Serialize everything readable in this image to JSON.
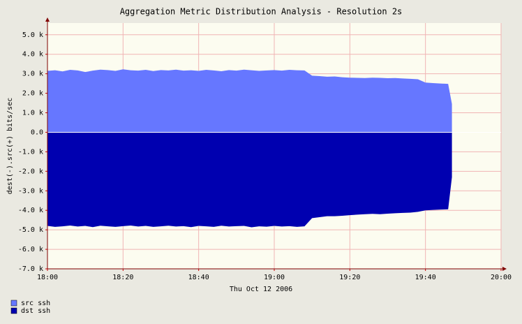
{
  "chart_data": {
    "type": "area",
    "title": "Aggregation Metric Distribution Analysis - Resolution 2s",
    "y_label": "dest(-).src(+) bits/sec",
    "x_label": "Thu Oct 12 2006",
    "x": [
      "18:00",
      "18:02",
      "18:04",
      "18:06",
      "18:08",
      "18:10",
      "18:12",
      "18:14",
      "18:16",
      "18:18",
      "18:20",
      "18:22",
      "18:24",
      "18:26",
      "18:28",
      "18:30",
      "18:32",
      "18:34",
      "18:36",
      "18:38",
      "18:40",
      "18:42",
      "18:44",
      "18:46",
      "18:48",
      "18:50",
      "18:52",
      "18:54",
      "18:56",
      "18:58",
      "19:00",
      "19:02",
      "19:04",
      "19:06",
      "19:08",
      "19:10",
      "19:12",
      "19:14",
      "19:16",
      "19:18",
      "19:20",
      "19:22",
      "19:24",
      "19:26",
      "19:28",
      "19:30",
      "19:32",
      "19:34",
      "19:36",
      "19:38",
      "19:40",
      "19:42",
      "19:44",
      "19:46",
      "19:47"
    ],
    "series": [
      {
        "name": "src ssh",
        "color": "#6677ff",
        "values": [
          3150,
          3180,
          3120,
          3200,
          3170,
          3090,
          3160,
          3210,
          3190,
          3150,
          3230,
          3180,
          3160,
          3200,
          3140,
          3190,
          3170,
          3210,
          3160,
          3180,
          3150,
          3200,
          3170,
          3130,
          3190,
          3160,
          3210,
          3180,
          3150,
          3170,
          3190,
          3160,
          3200,
          3180,
          3170,
          2900,
          2880,
          2850,
          2860,
          2820,
          2800,
          2790,
          2780,
          2800,
          2790,
          2770,
          2780,
          2760,
          2740,
          2720,
          2550,
          2520,
          2500,
          2480,
          1450
        ]
      },
      {
        "name": "dst ssh",
        "color": "#0000b0",
        "values": [
          -4800,
          -4850,
          -4820,
          -4780,
          -4830,
          -4800,
          -4860,
          -4790,
          -4820,
          -4850,
          -4810,
          -4780,
          -4830,
          -4800,
          -4850,
          -4820,
          -4790,
          -4830,
          -4810,
          -4860,
          -4800,
          -4820,
          -4850,
          -4790,
          -4830,
          -4810,
          -4800,
          -4870,
          -4820,
          -4840,
          -4800,
          -4830,
          -4810,
          -4850,
          -4820,
          -4400,
          -4350,
          -4300,
          -4300,
          -4280,
          -4250,
          -4220,
          -4200,
          -4180,
          -4200,
          -4170,
          -4150,
          -4130,
          -4120,
          -4080,
          -4000,
          -3980,
          -3960,
          -3950,
          -2300
        ]
      }
    ],
    "xlim": [
      "18:00",
      "20:00"
    ],
    "xticks": [
      "18:00",
      "18:20",
      "18:40",
      "19:00",
      "19:20",
      "19:40",
      "20:00"
    ],
    "ylim": [
      -7000,
      5600
    ],
    "yticks": [
      {
        "value": 5000,
        "label": "5.0 k"
      },
      {
        "value": 4000,
        "label": "4.0 k"
      },
      {
        "value": 3000,
        "label": "3.0 k"
      },
      {
        "value": 2000,
        "label": "2.0 k"
      },
      {
        "value": 1000,
        "label": "1.0 k"
      },
      {
        "value": 0,
        "label": "0.0"
      },
      {
        "value": -1000,
        "label": "-1.0 k"
      },
      {
        "value": -2000,
        "label": "-2.0 k"
      },
      {
        "value": -3000,
        "label": "-3.0 k"
      },
      {
        "value": -4000,
        "label": "-4.0 k"
      },
      {
        "value": -5000,
        "label": "-5.0 k"
      },
      {
        "value": -6000,
        "label": "-6.0 k"
      },
      {
        "value": -7000,
        "label": "-7.0 k"
      }
    ],
    "grid": true
  }
}
